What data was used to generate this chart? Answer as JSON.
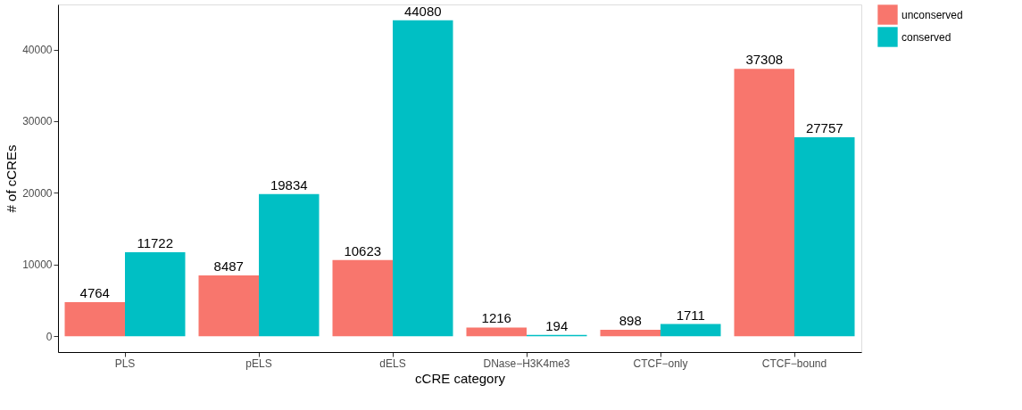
{
  "chart_data": {
    "type": "bar",
    "xlabel": "cCRE category",
    "ylabel": "# of cCREs",
    "categories": [
      "PLS",
      "pELS",
      "dELS",
      "DNase−H3K4me3",
      "CTCF−only",
      "CTCF−bound"
    ],
    "series": [
      {
        "name": "unconserved",
        "color": "#f8766d",
        "values": [
          4764,
          8487,
          10623,
          1216,
          898,
          37308
        ]
      },
      {
        "name": "conserved",
        "color": "#00bfc4",
        "values": [
          11722,
          19834,
          44080,
          194,
          1711,
          27757
        ]
      }
    ],
    "ylim": [
      -2204,
      46284
    ],
    "yticks": [
      0,
      10000,
      20000,
      30000,
      40000
    ],
    "data_labels": true,
    "grid": false,
    "legend": "right"
  }
}
